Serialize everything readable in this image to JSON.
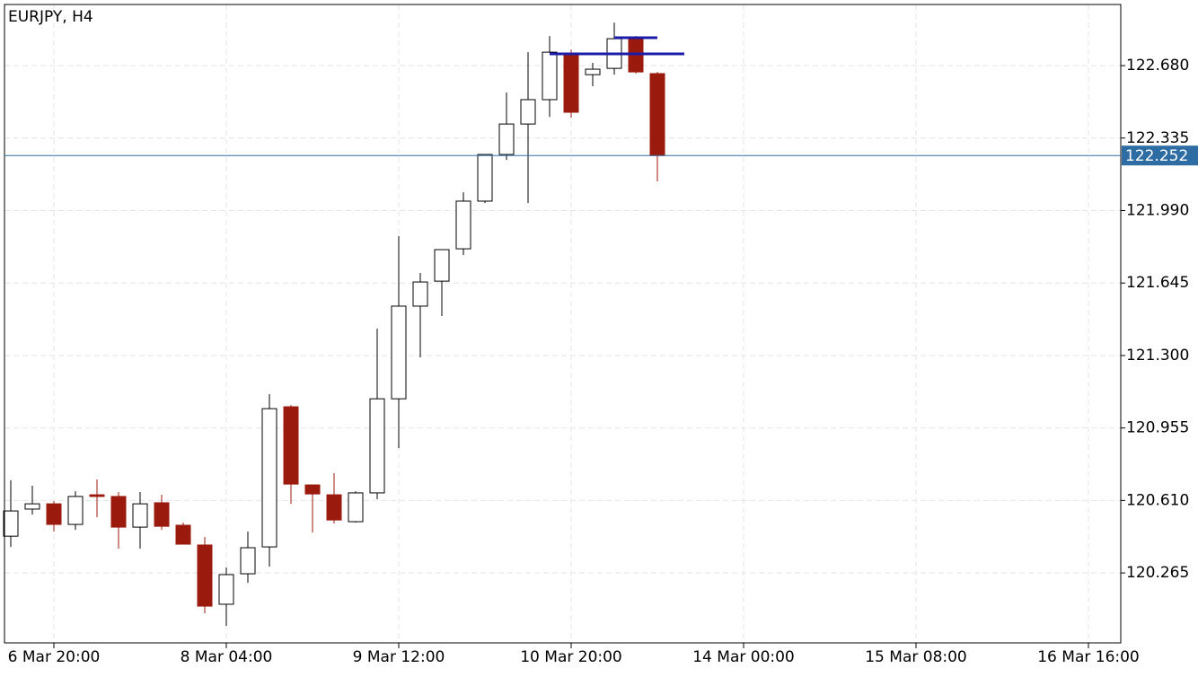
{
  "chart_data": {
    "type": "candlestick",
    "title": "EURJPY, H4",
    "categories": [
      null,
      null,
      "6 Mar 20:00",
      null,
      null,
      null,
      null,
      null,
      null,
      null,
      "8 Mar 04:00",
      null,
      null,
      null,
      null,
      null,
      null,
      null,
      "9 Mar 12:00",
      null,
      null,
      null,
      null,
      null,
      null,
      null,
      "10 Mar 20:00",
      null,
      null,
      null,
      null,
      null,
      null,
      null,
      "14 Mar 00:00",
      null,
      null,
      null,
      null,
      null,
      null,
      null,
      "15 Mar 08:00",
      null,
      null,
      null,
      null,
      null,
      null,
      null,
      "16 Mar 16:00",
      null
    ],
    "open": [
      120.44,
      120.569,
      120.594,
      120.496,
      120.637,
      120.629,
      120.483,
      120.599,
      120.492,
      120.398,
      120.116,
      120.261,
      120.389,
      121.056,
      120.684,
      120.637,
      120.509,
      120.646,
      121.094,
      121.535,
      121.654,
      121.808,
      122.035,
      122.257,
      122.402,
      122.518,
      122.74,
      122.637,
      122.667,
      122.808,
      122.642,
      null,
      null,
      null,
      null,
      null,
      null,
      null,
      null,
      null,
      null,
      null,
      null,
      null,
      null,
      null,
      null,
      null,
      null,
      null,
      null,
      null
    ],
    "high": [
      120.706,
      120.68,
      120.607,
      120.654,
      120.71,
      120.65,
      120.65,
      120.637,
      120.505,
      120.436,
      120.291,
      120.462,
      121.116,
      121.064,
      120.684,
      120.74,
      120.654,
      121.428,
      121.868,
      121.693,
      121.804,
      122.077,
      122.257,
      122.552,
      122.744,
      122.821,
      122.757,
      122.693,
      122.885,
      122.821,
      122.65,
      null,
      null,
      null,
      null,
      null,
      null,
      null,
      null,
      null,
      null,
      null,
      null,
      null,
      null,
      null,
      null,
      null,
      null,
      null,
      null,
      null
    ],
    "low": [
      120.389,
      120.543,
      120.462,
      120.47,
      120.53,
      120.381,
      120.381,
      120.47,
      120.402,
      120.073,
      120.013,
      120.218,
      120.295,
      120.594,
      120.458,
      120.5,
      120.505,
      120.616,
      120.859,
      121.291,
      121.488,
      121.778,
      122.026,
      122.231,
      122.026,
      122.436,
      122.432,
      122.582,
      122.637,
      122.642,
      122.129,
      null,
      null,
      null,
      null,
      null,
      null,
      null,
      null,
      null,
      null,
      null,
      null,
      null,
      null,
      null,
      null,
      null,
      null,
      null,
      null,
      null
    ],
    "close": [
      120.56,
      120.594,
      120.496,
      120.629,
      120.629,
      120.483,
      120.594,
      120.487,
      120.402,
      120.107,
      120.257,
      120.385,
      121.047,
      120.688,
      120.641,
      120.517,
      120.646,
      121.094,
      121.535,
      121.65,
      121.804,
      122.035,
      122.257,
      122.402,
      122.518,
      122.744,
      122.458,
      122.663,
      122.808,
      122.65,
      122.252,
      null,
      null,
      null,
      null,
      null,
      null,
      null,
      null,
      null,
      null,
      null,
      null,
      null,
      null,
      null,
      null,
      null,
      null,
      null,
      null,
      null
    ],
    "up_color": "#ffffff",
    "down_color": "#9b1a0e",
    "ylim": [
      119.932,
      122.971
    ],
    "yticks": [
      {
        "value": 120.265,
        "label": "120.265"
      },
      {
        "value": 120.61,
        "label": "120.610"
      },
      120.955,
      {
        "value": 121.3,
        "label": "121.300"
      },
      121.645,
      {
        "value": 121.99,
        "label": "121.990"
      },
      122.335,
      {
        "value": 122.68,
        "label": "122.680"
      }
    ],
    "last_price": 122.252,
    "last_price_color": "#2e6da4",
    "grid": true
  }
}
